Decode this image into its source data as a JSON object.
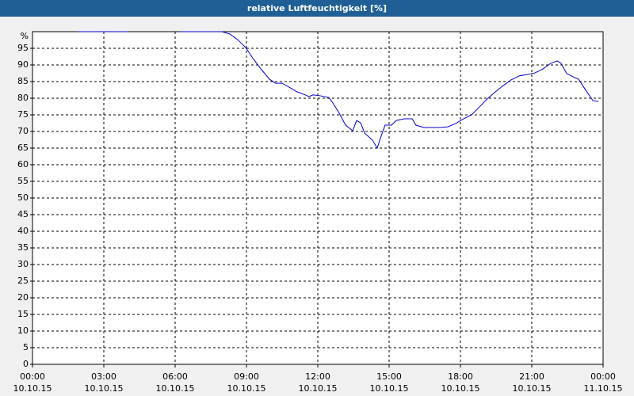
{
  "chart_data": {
    "type": "line",
    "title": "relative Luftfeuchtigkeit [%]",
    "y_label": "%",
    "x": [
      1.9,
      4.03,
      null,
      6.23,
      7.97,
      8.3,
      8.63,
      8.97,
      9.3,
      9.63,
      9.97,
      10.23,
      10.5,
      10.8,
      11.13,
      11.47,
      11.63,
      11.8,
      12.13,
      12.47,
      12.63,
      12.9,
      13.17,
      13.47,
      13.63,
      13.8,
      13.97,
      14.3,
      14.5,
      14.63,
      14.83,
      15.1,
      15.3,
      15.63,
      15.97,
      16.13,
      16.47,
      16.8,
      17.13,
      17.47,
      17.8,
      18.13,
      18.47,
      18.8,
      19.13,
      19.47,
      19.8,
      20.13,
      20.47,
      20.8,
      21.13,
      21.47,
      21.8,
      22.07,
      22.23,
      22.47,
      22.8,
      22.97,
      23.3,
      23.57,
      23.8
    ],
    "series": [
      {
        "name": "relative Luftfeuchtigkeit",
        "color": "#0000cc",
        "values": [
          100,
          100,
          null,
          100,
          100,
          99.3,
          97.6,
          95.2,
          91.7,
          88.6,
          85.7,
          84.5,
          84.5,
          83.3,
          81.9,
          81,
          80.5,
          81,
          80.7,
          80.2,
          78.6,
          75.5,
          71.9,
          70.2,
          73.3,
          72.6,
          69.5,
          67.4,
          65,
          67.9,
          71.9,
          71.9,
          73.3,
          73.8,
          73.8,
          71.9,
          71.2,
          71.2,
          71.2,
          71.4,
          72.4,
          73.8,
          75,
          77.4,
          79.8,
          81.9,
          83.8,
          85.5,
          86.7,
          87.1,
          87.6,
          88.8,
          90.5,
          91.2,
          90.5,
          87.4,
          86.2,
          85.7,
          82.1,
          79.3,
          79
        ]
      }
    ],
    "xlim": [
      0,
      24
    ],
    "xticks": [
      {
        "value": 0,
        "label": "00:00"
      },
      {
        "value": 3,
        "label": "03:00"
      },
      {
        "value": 6,
        "label": "06:00"
      },
      {
        "value": 9,
        "label": "09:00"
      },
      {
        "value": 12,
        "label": "12:00"
      },
      {
        "value": 15,
        "label": "15:00"
      },
      {
        "value": 18,
        "label": "18:00"
      },
      {
        "value": 21,
        "label": "21:00"
      },
      {
        "value": 24,
        "label": "00:00"
      }
    ],
    "xtick_dates": [
      "10.10.15",
      "10.10.15",
      "10.10.15",
      "10.10.15",
      "10.10.15",
      "10.10.15",
      "10.10.15",
      "10.10.15",
      "11.10.15"
    ],
    "ylim": [
      0,
      100
    ],
    "yticks": [
      0,
      5,
      10,
      15,
      20,
      25,
      30,
      35,
      40,
      45,
      50,
      55,
      60,
      65,
      70,
      75,
      80,
      85,
      90,
      95
    ],
    "grid": true
  }
}
